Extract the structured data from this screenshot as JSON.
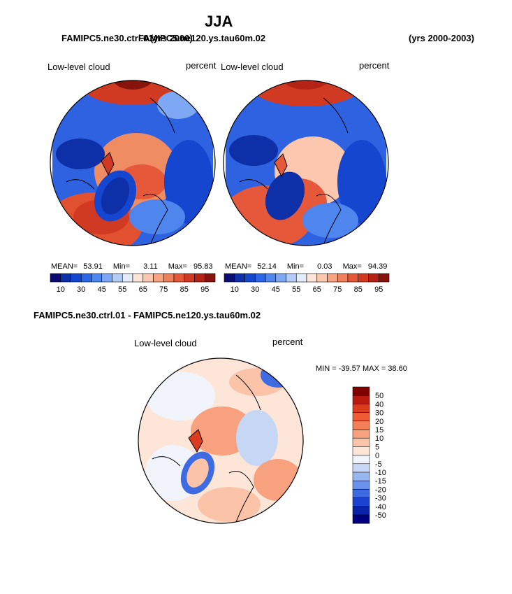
{
  "page": {
    "title": "JJA",
    "run_a_label": "FAMIPC5.ne30.ctrl.01",
    "run_b_label": "FAMIPC5.ne120.ys.tau60m.02",
    "run_a_years": "(yrs 2000)",
    "run_b_years": "(yrs 2000-2003)",
    "diff_label": "FAMIPC5.ne30.ctrl.01 - FAMIPC5.ne120.ys.tau60m.02"
  },
  "panels": [
    {
      "variable": "Low-level cloud",
      "units": "percent",
      "mean_label": "MEAN=",
      "mean": "53.91",
      "min_label": "Min=",
      "min": "3.11",
      "max_label": "Max=",
      "max": "95.83"
    },
    {
      "variable": "Low-level cloud",
      "units": "percent",
      "mean_label": "MEAN=",
      "mean": "52.14",
      "min_label": "Min=",
      "min": "0.03",
      "max_label": "Max=",
      "max": "94.39"
    }
  ],
  "diff_panel": {
    "variable": "Low-level cloud",
    "units": "percent",
    "minmax": "MIN = -39.57 MAX =  38.60"
  },
  "colorbar_abs": {
    "labels": [
      "10",
      "30",
      "45",
      "55",
      "65",
      "75",
      "85",
      "95"
    ],
    "colors": [
      "#0b0d73",
      "#0d2fa8",
      "#1546cf",
      "#2a66e6",
      "#4f86ee",
      "#7ea8f4",
      "#b4cdf8",
      "#e3ecfb",
      "#fde5d8",
      "#fbc7ae",
      "#f7a483",
      "#f0805b",
      "#e5583a",
      "#d13a22",
      "#b32416",
      "#86140c"
    ]
  },
  "colorbar_diff": {
    "labels": [
      "50",
      "40",
      "30",
      "20",
      "15",
      "10",
      "5",
      "0",
      "-5",
      "-10",
      "-15",
      "-20",
      "-30",
      "-40",
      "-50"
    ],
    "colors": [
      "#800000",
      "#b81b0e",
      "#dc3c1e",
      "#ef5b35",
      "#f57f57",
      "#f8a17f",
      "#fbc4a9",
      "#fde5d8",
      "#f2f4fb",
      "#c6d7f6",
      "#98b6f0",
      "#6a92ea",
      "#3e6be2",
      "#1b43d2",
      "#0a23a8",
      "#000080"
    ]
  }
}
